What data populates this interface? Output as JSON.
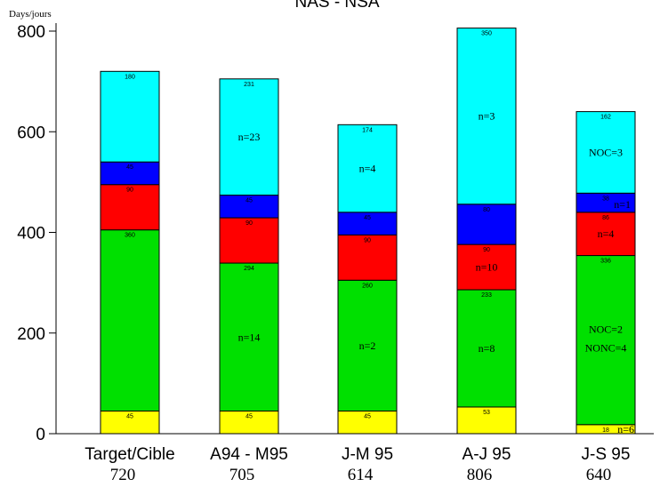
{
  "chart_data": {
    "type": "bar",
    "stacked": true,
    "title": "NAS - NSA",
    "ylabel": "Days/jours",
    "ylim": [
      0,
      800
    ],
    "yticks": [
      0,
      200,
      400,
      600,
      800
    ],
    "grid": false,
    "categories": [
      "Target/Cible",
      "A94 - M95",
      "J-M 95",
      "A-J 95",
      "J-S 95"
    ],
    "totals": [
      "720",
      "705",
      "614",
      "806",
      "640"
    ],
    "colors": [
      "#ffff00",
      "#00e000",
      "#ff0000",
      "#0000ff",
      "#00ffff"
    ],
    "series": [
      {
        "values": [
          45,
          45,
          45,
          53,
          18
        ],
        "labels": [
          "45",
          "45",
          "45",
          "53",
          "18"
        ]
      },
      {
        "values": [
          360,
          294,
          260,
          233,
          336
        ],
        "labels": [
          "360",
          "294",
          "260",
          "233",
          "336"
        ]
      },
      {
        "values": [
          90,
          90,
          90,
          90,
          86
        ],
        "labels": [
          "90",
          "90",
          "90",
          "90",
          "86"
        ]
      },
      {
        "values": [
          45,
          45,
          45,
          80,
          38
        ],
        "labels": [
          "45",
          "45",
          "45",
          "80",
          "38"
        ]
      },
      {
        "values": [
          180,
          231,
          174,
          350,
          162
        ],
        "labels": [
          "180",
          "231",
          "174",
          "350",
          "162"
        ]
      }
    ],
    "annotations": [
      {
        "bar": 1,
        "series": 4,
        "text": "n=23"
      },
      {
        "bar": 1,
        "series": 1,
        "text": "n=14"
      },
      {
        "bar": 2,
        "series": 4,
        "text": "n=4"
      },
      {
        "bar": 2,
        "series": 1,
        "text": "n=2"
      },
      {
        "bar": 3,
        "series": 4,
        "text": "n=3"
      },
      {
        "bar": 3,
        "series": 2,
        "text": "n=10"
      },
      {
        "bar": 3,
        "series": 1,
        "text": "n=8"
      },
      {
        "bar": 4,
        "series": 4,
        "text": "NOC=3"
      },
      {
        "bar": 4,
        "series": 3,
        "text": "n=1"
      },
      {
        "bar": 4,
        "series": 2,
        "text": "n=4"
      },
      {
        "bar": 4,
        "series": 1,
        "text": "NOC=2"
      },
      {
        "bar": 4,
        "series": 1,
        "text": "NONC=4"
      },
      {
        "bar": 4,
        "series": 0,
        "text": "n=6"
      }
    ]
  }
}
